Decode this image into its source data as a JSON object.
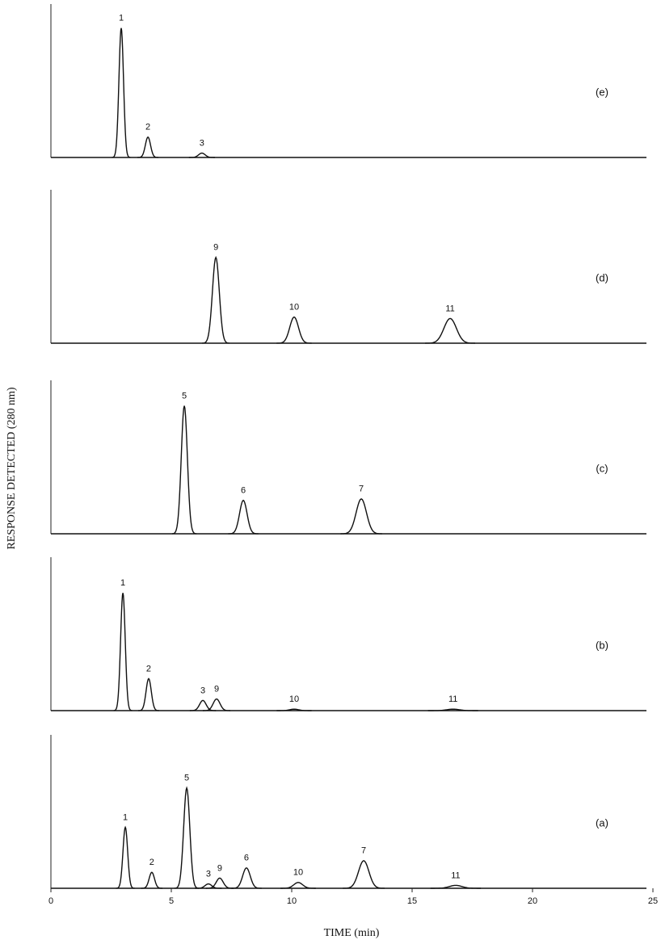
{
  "chart_data": {
    "type": "chromatogram",
    "x_label": "TIME (min)",
    "y_label": "RESPONSE DETECTED (280 nm)",
    "xlim": [
      0,
      25
    ],
    "xticks": [
      0,
      5,
      10,
      15,
      20,
      25
    ],
    "ylim": [
      0,
      100
    ],
    "panels": [
      {
        "label": "(e)",
        "peaks": [
          {
            "label": "1",
            "x": 2.92,
            "height": 89
          },
          {
            "label": "2",
            "x": 4.03,
            "height": 14
          },
          {
            "label": "3",
            "x": 6.27,
            "height": 3
          }
        ]
      },
      {
        "label": "(d)",
        "peaks": [
          {
            "label": "9",
            "x": 6.85,
            "height": 59
          },
          {
            "label": "10",
            "x": 10.1,
            "height": 18
          },
          {
            "label": "11",
            "x": 16.58,
            "height": 17
          }
        ]
      },
      {
        "label": "(c)",
        "peaks": [
          {
            "label": "5",
            "x": 5.54,
            "height": 88
          },
          {
            "label": "6",
            "x": 7.99,
            "height": 23
          },
          {
            "label": "7",
            "x": 12.89,
            "height": 24
          }
        ]
      },
      {
        "label": "(b)",
        "peaks": [
          {
            "label": "1",
            "x": 2.99,
            "height": 81
          },
          {
            "label": "2",
            "x": 4.06,
            "height": 22
          },
          {
            "label": "3",
            "x": 6.31,
            "height": 7
          },
          {
            "label": "9",
            "x": 6.88,
            "height": 8
          },
          {
            "label": "10",
            "x": 10.1,
            "height": 1
          },
          {
            "label": "11",
            "x": 16.7,
            "height": 1
          }
        ]
      },
      {
        "label": "(a)",
        "peaks": [
          {
            "label": "1",
            "x": 3.09,
            "height": 42
          },
          {
            "label": "2",
            "x": 4.19,
            "height": 11
          },
          {
            "label": "5",
            "x": 5.64,
            "height": 69
          },
          {
            "label": "3",
            "x": 6.54,
            "height": 3
          },
          {
            "label": "9",
            "x": 7.01,
            "height": 7
          },
          {
            "label": "6",
            "x": 8.12,
            "height": 14
          },
          {
            "label": "10",
            "x": 10.27,
            "height": 4
          },
          {
            "label": "7",
            "x": 12.99,
            "height": 19
          },
          {
            "label": "11",
            "x": 16.81,
            "height": 2
          }
        ]
      }
    ]
  }
}
